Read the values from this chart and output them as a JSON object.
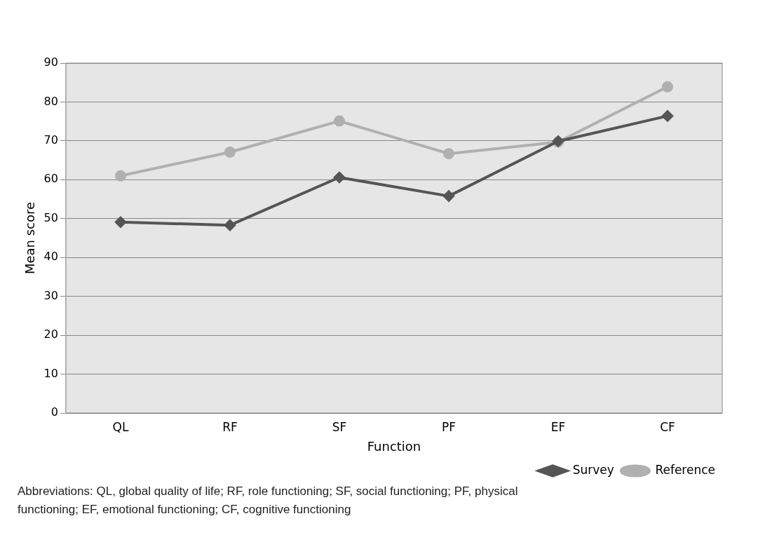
{
  "chart_data": {
    "type": "line",
    "xlabel": "Function",
    "ylabel": "Mean score",
    "categories": [
      "QL",
      "RF",
      "SF",
      "PF",
      "EF",
      "CF"
    ],
    "series": [
      {
        "name": "Survey",
        "color": "#555555",
        "marker": "diamond",
        "values": [
          49.1,
          48.3,
          60.6,
          55.8,
          69.9,
          76.4
        ]
      },
      {
        "name": "Reference",
        "color": "#b0b0b0",
        "marker": "circle",
        "values": [
          61,
          67.1,
          75.1,
          66.7,
          69.7,
          83.9
        ]
      }
    ],
    "ylim": [
      0,
      90
    ],
    "yticks": [
      0,
      10,
      20,
      30,
      40,
      50,
      60,
      70,
      80,
      90
    ],
    "grid": "y",
    "legend": "bottom right",
    "annotations": [
      "Abbreviations: QL, global quality of life; RF, role functioning; SF, social functioning; PF, physical functioning; EF, emotional functioning; CF, cognitive functioning"
    ]
  }
}
